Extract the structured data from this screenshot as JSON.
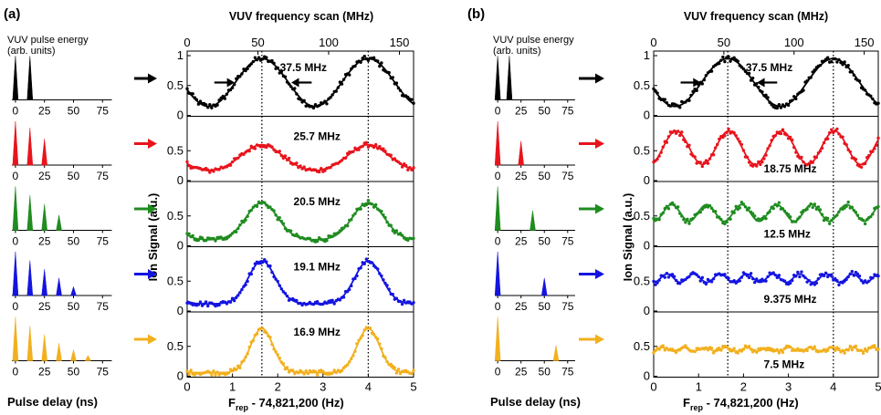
{
  "panel_a": {
    "label": "(a)",
    "left_title": "VUV pulse energy",
    "left_subtitle": "(arb. units)",
    "left_xlabel": "Pulse delay (ns)",
    "top_xlabel": "VUV frequency scan (MHz)",
    "ylabel": "Ion Signal (a.u.)",
    "bottom_xlabel_main": "F",
    "bottom_xlabel_sub": "rep",
    "bottom_xlabel_rest": " - 74,821,200 (Hz)"
  },
  "panel_b": {
    "label": "(b)",
    "left_title": "VUV pulse energy",
    "left_subtitle": "(arb. units)",
    "left_xlabel": "Pulse delay (ns)",
    "top_xlabel": "VUV frequency scan (MHz)",
    "ylabel": "Ion Signal (a.u.)",
    "bottom_xlabel_main": "F",
    "bottom_xlabel_sub": "rep",
    "bottom_xlabel_rest": " - 74,821,200 (Hz)"
  },
  "colors": {
    "row1": "#000000",
    "row2": "#e8141c",
    "row3": "#1f8c1f",
    "row4": "#1414e0",
    "row5": "#f2b01e"
  },
  "chart_data": [
    {
      "type": "bar",
      "panel": "a",
      "title": "VUV pulse energy (arb. units)",
      "xlabel": "Pulse delay (ns)",
      "xticks": [
        "0",
        "25",
        "50",
        "75"
      ],
      "xlim": [
        -7,
        85
      ],
      "rows": [
        {
          "color": "row1",
          "delays": [
            0,
            12.5
          ],
          "heights": [
            1,
            1
          ]
        },
        {
          "color": "row2",
          "delays": [
            0,
            12.5,
            25
          ],
          "heights": [
            1,
            0.85,
            0.6
          ]
        },
        {
          "color": "row3",
          "delays": [
            0,
            12.5,
            25,
            37.5
          ],
          "heights": [
            1,
            0.8,
            0.6,
            0.35
          ]
        },
        {
          "color": "row4",
          "delays": [
            0,
            12.5,
            25,
            37.5,
            50
          ],
          "heights": [
            1,
            0.8,
            0.6,
            0.4,
            0.2
          ]
        },
        {
          "color": "row5",
          "delays": [
            0,
            12.5,
            25,
            37.5,
            50,
            62.5
          ],
          "heights": [
            1,
            0.8,
            0.6,
            0.4,
            0.25,
            0.12
          ]
        }
      ]
    },
    {
      "type": "scatter",
      "panel": "a",
      "top_xlabel": "VUV frequency scan (MHz)",
      "top_xticks": [
        "0",
        "50",
        "100",
        "150"
      ],
      "top_xlim": [
        0,
        160
      ],
      "xlabel": "Frep - 74,821,200 (Hz)",
      "xticks": [
        "0",
        "1",
        "2",
        "3",
        "4",
        "5"
      ],
      "xlim": [
        0,
        5
      ],
      "ylabel": "Ion Signal (a.u.)",
      "vlines": [
        1.65,
        4.0
      ],
      "rows": [
        {
          "color": "row1",
          "label": "37.5 MHz",
          "ylim": [
            0,
            1
          ],
          "yticks": [
            "0",
            "0.5",
            "1"
          ],
          "kind": "cos",
          "base": 0.55,
          "amp": 0.4,
          "period": 2.35,
          "phase": 1.65,
          "width": 0,
          "noise": 0.05,
          "arrows": true
        },
        {
          "color": "row2",
          "label": "25.7 MHz",
          "ylim": [
            0,
            1
          ],
          "yticks": [
            "0",
            "0.5"
          ],
          "kind": "peak",
          "base": 0.15,
          "amp": 0.45,
          "period": 2.35,
          "phase": 1.65,
          "width": 0.45,
          "noise": 0.04
        },
        {
          "color": "row3",
          "label": "20.5 MHz",
          "ylim": [
            0,
            1
          ],
          "yticks": [
            "0",
            "0.5"
          ],
          "kind": "peak",
          "base": 0.1,
          "amp": 0.62,
          "period": 2.35,
          "phase": 1.65,
          "width": 0.35,
          "noise": 0.04
        },
        {
          "color": "row4",
          "label": "19.1 MHz",
          "ylim": [
            0,
            1
          ],
          "yticks": [
            "0",
            "0.5"
          ],
          "kind": "peak",
          "base": 0.12,
          "amp": 0.72,
          "period": 2.35,
          "phase": 1.65,
          "width": 0.3,
          "noise": 0.04
        },
        {
          "color": "row5",
          "label": "16.9 MHz",
          "ylim": [
            0,
            1
          ],
          "yticks": [
            "0",
            "0.5"
          ],
          "kind": "peak",
          "base": 0.06,
          "amp": 0.74,
          "period": 2.35,
          "phase": 1.65,
          "width": 0.25,
          "noise": 0.04
        }
      ]
    },
    {
      "type": "bar",
      "panel": "b",
      "title": "VUV pulse energy (arb. units)",
      "xlabel": "Pulse delay (ns)",
      "xticks": [
        "0",
        "25",
        "50",
        "75"
      ],
      "xlim": [
        -7,
        85
      ],
      "rows": [
        {
          "color": "row1",
          "delays": [
            0,
            12.5
          ],
          "heights": [
            1,
            1
          ]
        },
        {
          "color": "row2",
          "delays": [
            0,
            25
          ],
          "heights": [
            1,
            0.55
          ]
        },
        {
          "color": "row3",
          "delays": [
            0,
            37.5
          ],
          "heights": [
            1,
            0.45
          ]
        },
        {
          "color": "row4",
          "delays": [
            0,
            50
          ],
          "heights": [
            1,
            0.4
          ]
        },
        {
          "color": "row5",
          "delays": [
            0,
            62.5
          ],
          "heights": [
            1,
            0.35
          ]
        }
      ]
    },
    {
      "type": "scatter",
      "panel": "b",
      "top_xlabel": "VUV frequency scan (MHz)",
      "top_xticks": [
        "0",
        "50",
        "100",
        "150"
      ],
      "top_xlim": [
        0,
        160
      ],
      "xlabel": "Frep - 74,821,200 (Hz)",
      "xticks": [
        "0",
        "1",
        "2",
        "3",
        "4",
        "5"
      ],
      "xlim": [
        0,
        5
      ],
      "ylabel": "Ion Signal (a.u.)",
      "vlines": [
        1.65,
        4.0
      ],
      "rows": [
        {
          "color": "row1",
          "label": "37.5 MHz",
          "ylim": [
            0,
            1
          ],
          "yticks": [
            "0",
            "0.5",
            "1"
          ],
          "kind": "cos",
          "base": 0.55,
          "amp": 0.4,
          "period": 2.35,
          "phase": 1.65,
          "width": 0,
          "noise": 0.05,
          "arrows": true
        },
        {
          "color": "row2",
          "label": "18.75 MHz",
          "ylim": [
            0,
            1
          ],
          "yticks": [
            "0",
            "0.5"
          ],
          "kind": "cos",
          "base": 0.55,
          "amp": 0.28,
          "period": 1.175,
          "phase": 0.5,
          "width": 0,
          "noise": 0.05
        },
        {
          "color": "row3",
          "label": "12.5 MHz",
          "ylim": [
            0,
            1
          ],
          "yticks": [
            "0",
            "0.5"
          ],
          "kind": "cos",
          "base": 0.55,
          "amp": 0.14,
          "period": 0.78,
          "phase": 0.4,
          "width": 0,
          "noise": 0.05
        },
        {
          "color": "row4",
          "label": "9.375 MHz",
          "ylim": [
            0,
            1
          ],
          "yticks": [
            "0",
            "0.5"
          ],
          "kind": "cos",
          "base": 0.55,
          "amp": 0.07,
          "period": 0.59,
          "phase": 0.3,
          "width": 0,
          "noise": 0.05
        },
        {
          "color": "row5",
          "label": "7.5 MHz",
          "ylim": [
            0,
            1
          ],
          "yticks": [
            "0",
            "0.5"
          ],
          "kind": "cos",
          "base": 0.45,
          "amp": 0.03,
          "period": 0.47,
          "phase": 0.2,
          "width": 0,
          "noise": 0.04
        }
      ]
    }
  ]
}
